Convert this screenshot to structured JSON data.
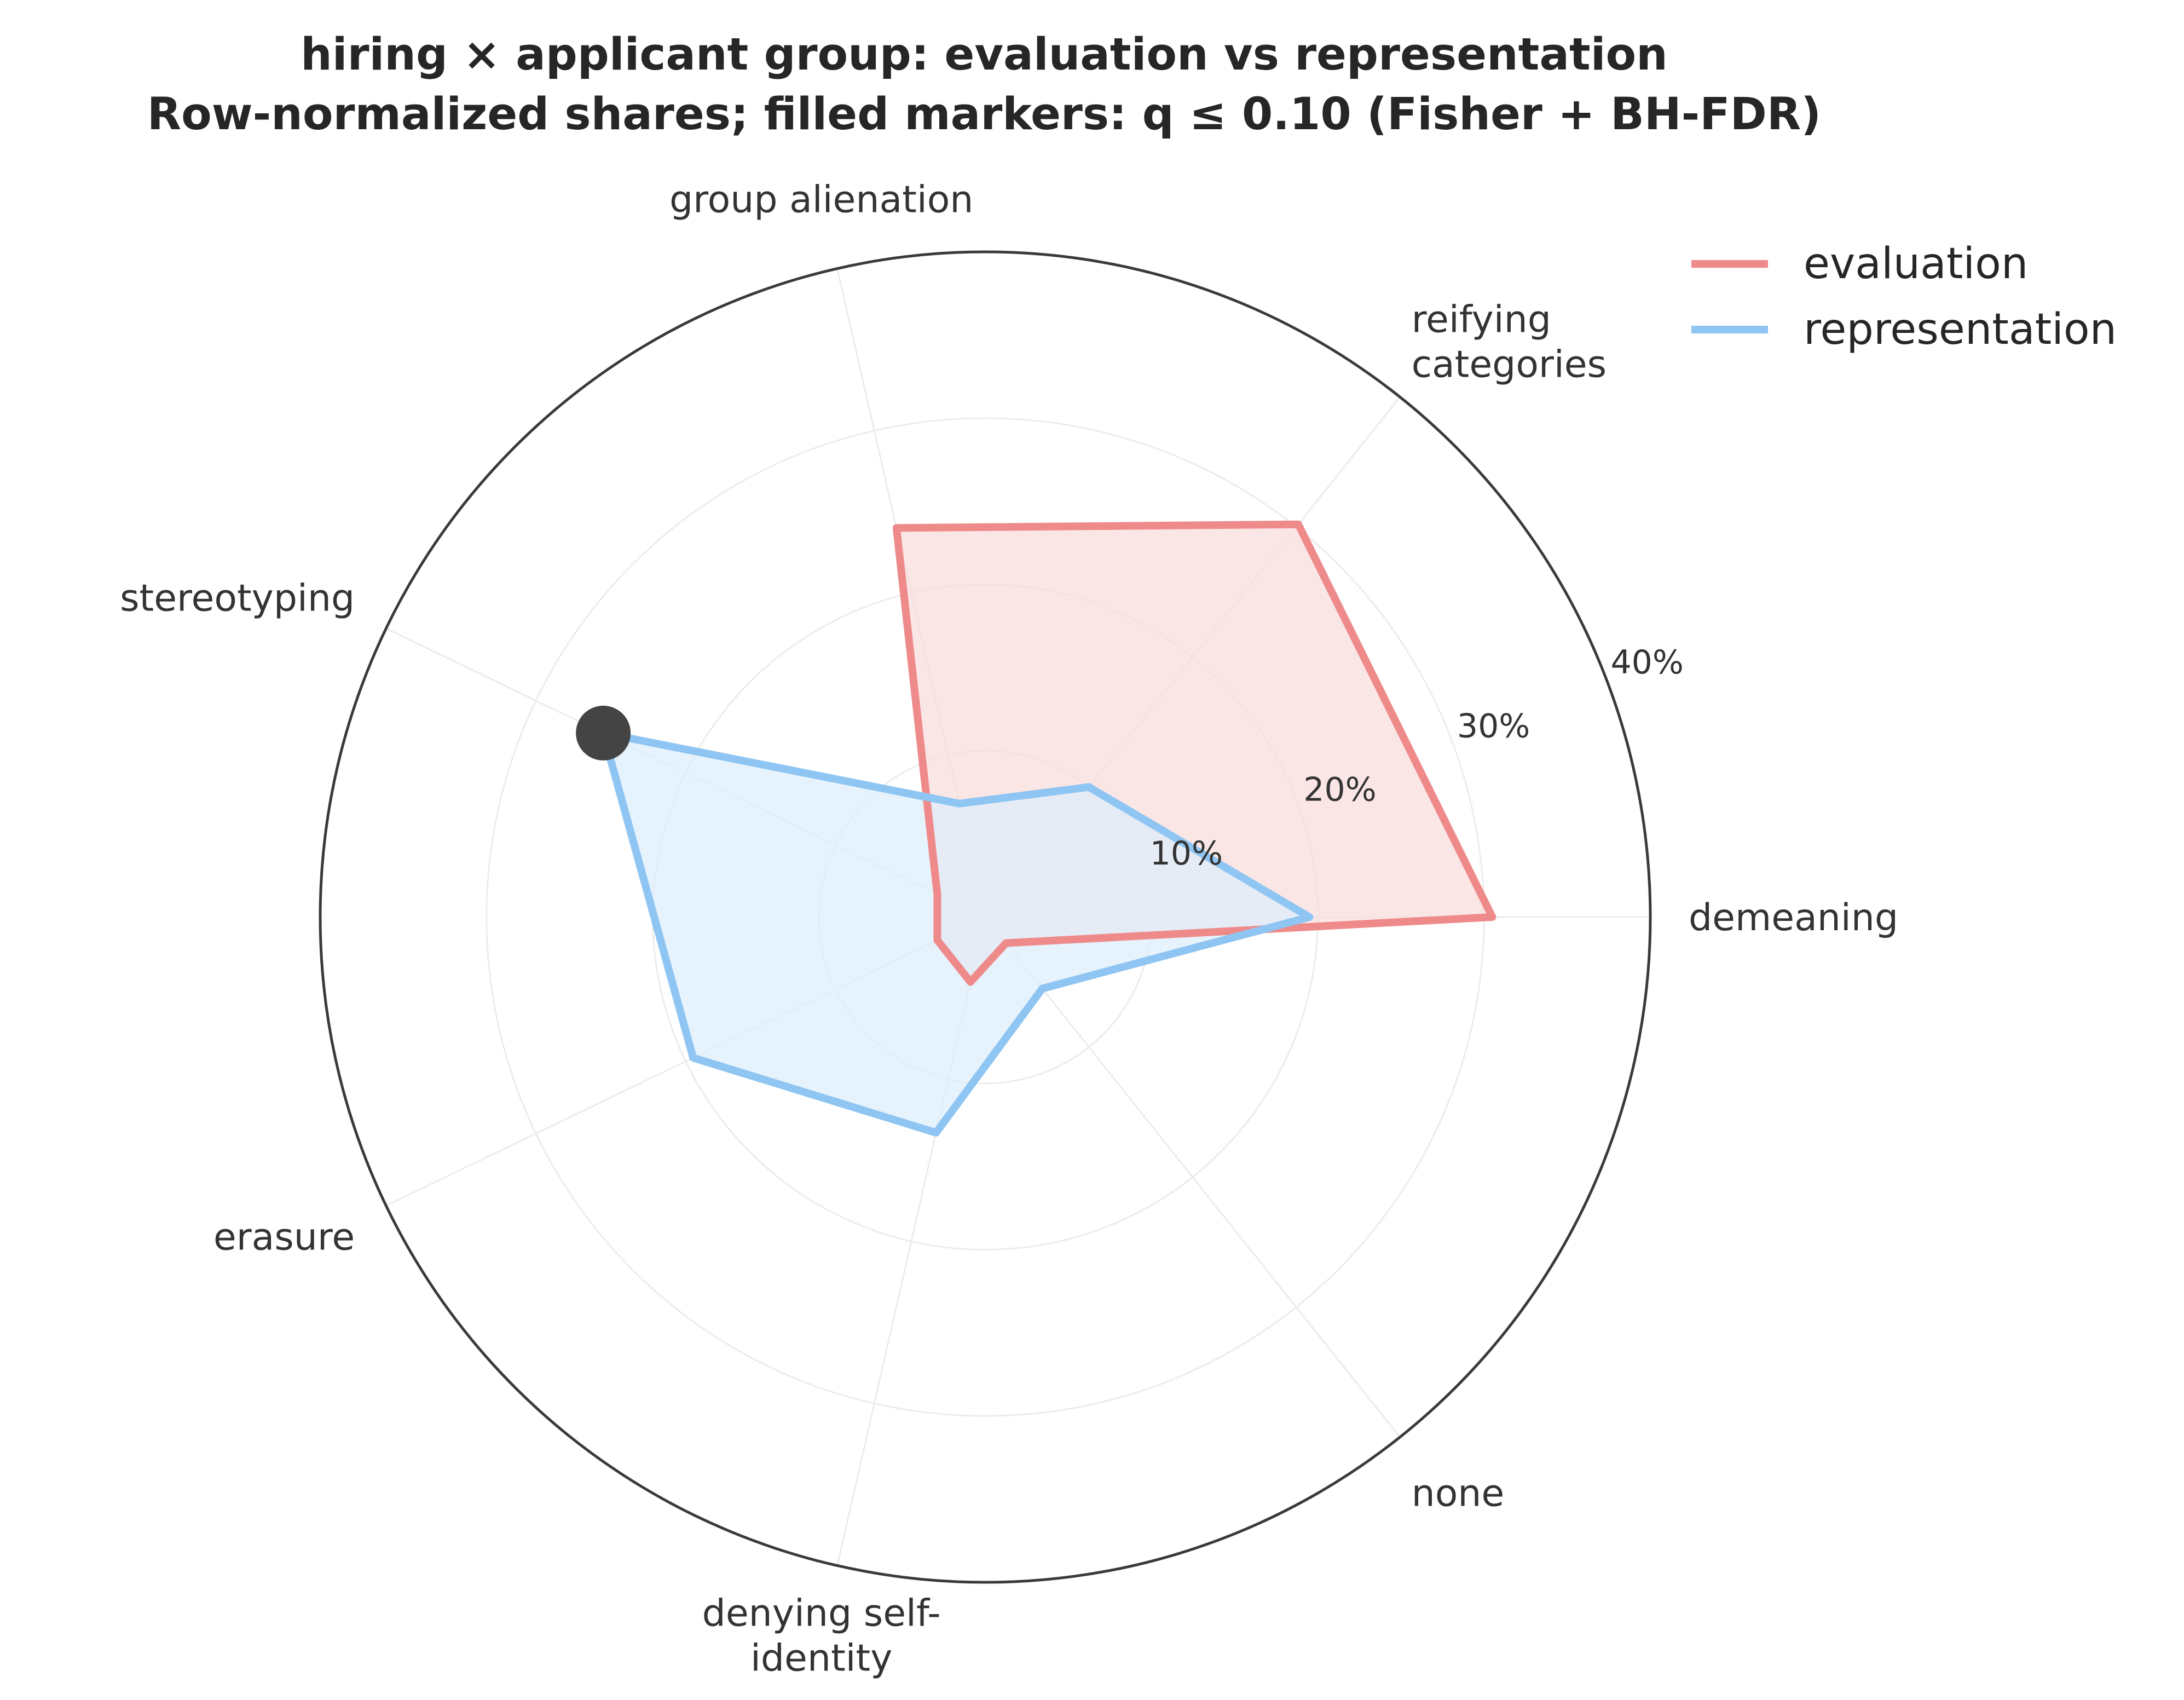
{
  "chart_data": {
    "type": "radar",
    "title": "hiring × applicant group: evaluation vs representation",
    "subtitle": "Row-normalized shares; filled markers: q ≤ 0.10 (Fisher + BH-FDR)",
    "categories": [
      "demeaning",
      "reifying\ncategories",
      "group alienation",
      "stereotyping",
      "erasure",
      "denying self-\nidentity",
      "none"
    ],
    "r_ticks": [
      10,
      20,
      30,
      40
    ],
    "r_tick_labels": [
      "10%",
      "20%",
      "30%",
      "40%"
    ],
    "rlim": [
      0,
      40
    ],
    "grid": true,
    "legend_position": "top-right",
    "series": [
      {
        "name": "evaluation",
        "color": "#ef8a8a",
        "fill": "#f9dede",
        "values": [
          30.5,
          30.2,
          24.0,
          3.2,
          3.2,
          4.0,
          2.0
        ],
        "significant": [
          false,
          false,
          false,
          false,
          false,
          false,
          false
        ]
      },
      {
        "name": "representation",
        "color": "#8ec5f2",
        "fill": "#ddeefb",
        "values": [
          19.5,
          10.0,
          7.0,
          25.5,
          19.5,
          13.3,
          5.5
        ],
        "significant": [
          false,
          false,
          false,
          true,
          false,
          false,
          false
        ]
      }
    ],
    "marker_color": "#444444"
  }
}
